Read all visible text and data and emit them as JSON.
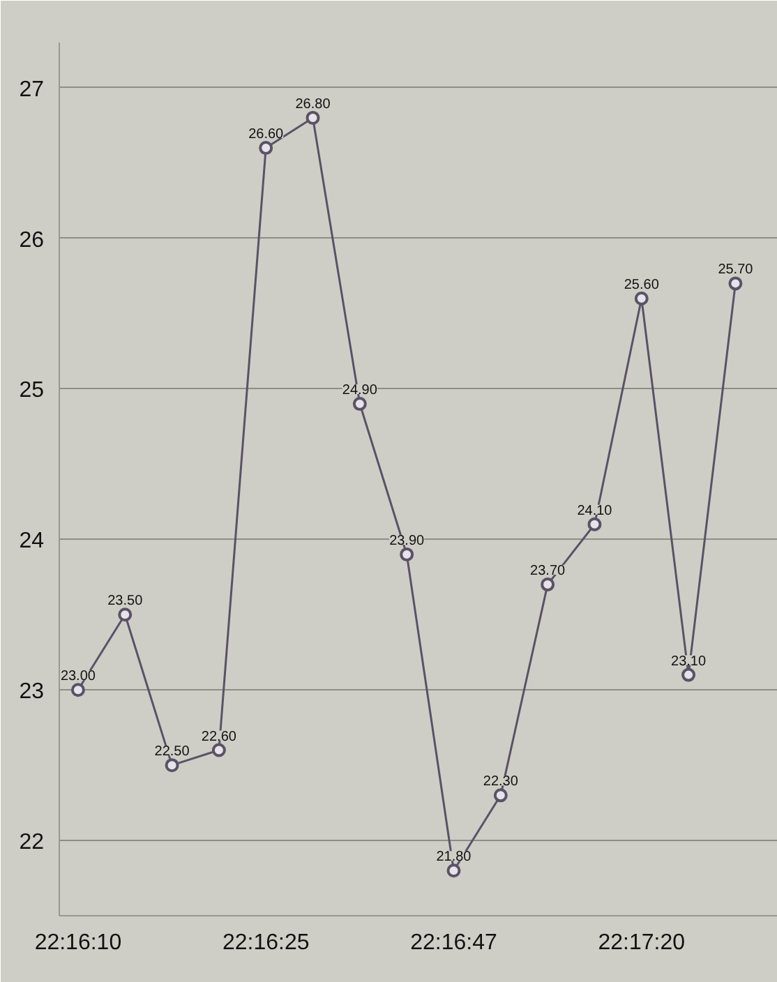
{
  "chart_data": {
    "type": "line",
    "categories": [
      "22:16:10",
      null,
      null,
      null,
      "22:16:25",
      null,
      null,
      null,
      "22:16:47",
      null,
      null,
      null,
      "22:17:20",
      null,
      null
    ],
    "series": [
      {
        "color": "#5b5266",
        "values": [
          23.0,
          23.5,
          22.5,
          22.6,
          26.6,
          26.8,
          24.9,
          23.9,
          21.8,
          22.3,
          23.7,
          24.1,
          25.6,
          23.1,
          25.7
        ],
        "value_labels": [
          "23.00",
          "23.50",
          "22.50",
          "22.60",
          "26.60",
          "26.80",
          "24.90",
          "23.90",
          "21.80",
          "22.30",
          "23.70",
          "24.10",
          "25.60",
          "23.10",
          "25.70"
        ]
      }
    ],
    "ylim": [
      21.5,
      27.3
    ],
    "yticks": [
      22,
      23,
      24,
      25,
      26,
      27
    ],
    "grid": "y",
    "marker": "circle",
    "line_style": "solid"
  }
}
